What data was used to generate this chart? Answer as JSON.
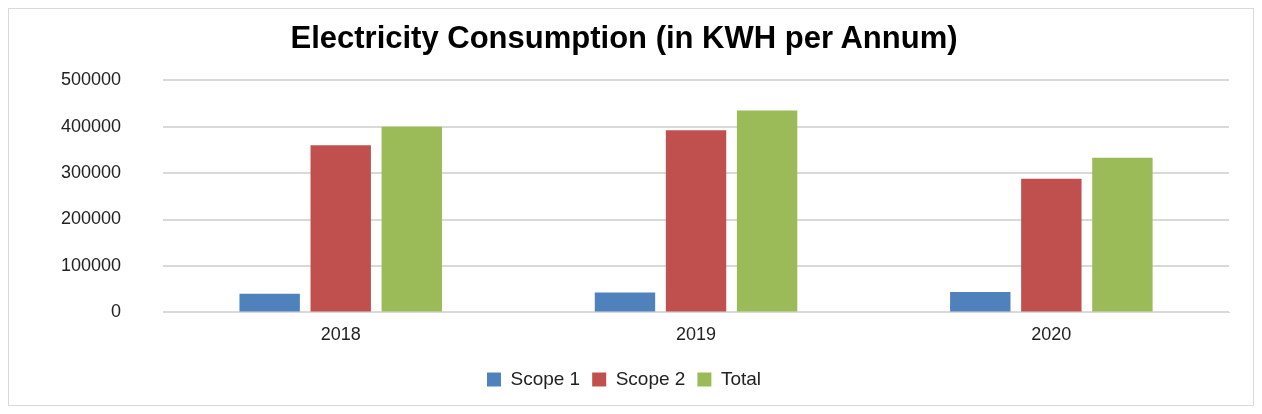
{
  "chart_data": {
    "type": "bar",
    "title": "Electricity Consumption (in KWH per Annum)",
    "categories": [
      "2018",
      "2019",
      "2020"
    ],
    "series": [
      {
        "name": "Scope 1",
        "color": "#4f81bd",
        "values": [
          40000,
          43000,
          44000
        ]
      },
      {
        "name": "Scope 2",
        "color": "#c0504d",
        "values": [
          360000,
          392000,
          288000
        ]
      },
      {
        "name": "Total",
        "color": "#9bbb59",
        "values": [
          400000,
          435000,
          333000
        ]
      }
    ],
    "ylim": [
      0,
      500000
    ],
    "yticks": [
      0,
      100000,
      200000,
      300000,
      400000,
      500000
    ],
    "grid": "y",
    "legend": "bottom"
  }
}
